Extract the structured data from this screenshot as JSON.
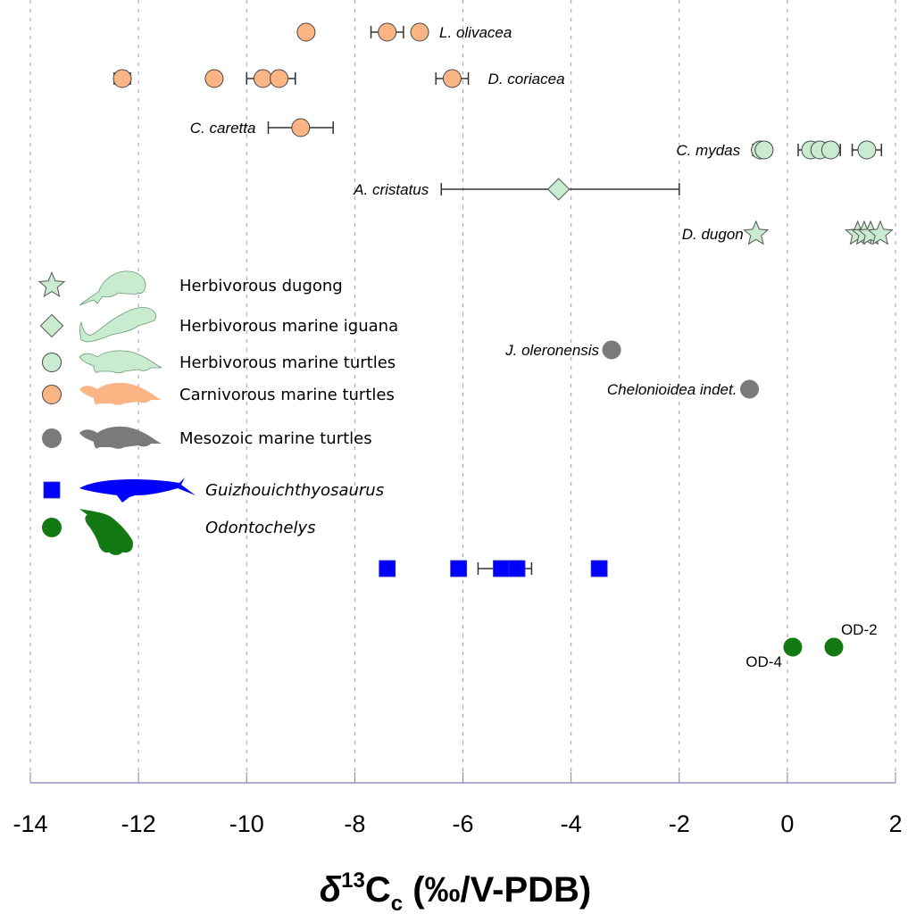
{
  "chart_data": {
    "type": "scatter",
    "title": "",
    "xlabel": "δ13Cc (‰/V-PDB)",
    "xlabel_parts": {
      "delta": "δ",
      "sup": "13",
      "c": "C",
      "sub": "c",
      "rest": " (‰/V-PDB)"
    },
    "ylabel": "",
    "xlim": [
      -14,
      2
    ],
    "xticks": [
      -14,
      -12,
      -10,
      -8,
      -6,
      -4,
      -2,
      0,
      2
    ],
    "xtick_labels": [
      "-14",
      "-12",
      "-10",
      "-8",
      "-6",
      "-4",
      "-2",
      "0",
      "2"
    ],
    "grid": "vertical dashed",
    "legend_placement": "left",
    "colors": {
      "herbivore": "#c9ecd0",
      "carnivore": "#fbb584",
      "mesozoic": "#7a7a7a",
      "ichthyosaur": "#0000ff",
      "odontochelys": "#137a13",
      "outline": "#444444"
    },
    "legend": [
      {
        "marker": "star",
        "group": "herbivore",
        "label": "Herbivorous dugong",
        "italic": false,
        "silhouette": "dugong"
      },
      {
        "marker": "diamond",
        "group": "herbivore",
        "label": "Herbivorous marine iguana",
        "italic": false,
        "silhouette": "iguana"
      },
      {
        "marker": "circle",
        "group": "herbivore",
        "label": "Herbivorous marine turtles",
        "italic": false,
        "silhouette": "turtle"
      },
      {
        "marker": "circle",
        "group": "carnivore",
        "label": "Carnivorous  marine turtles",
        "italic": false,
        "silhouette": "turtle"
      },
      {
        "marker": "circle",
        "group": "mesozoic",
        "label": "Mesozoic marine turtles",
        "italic": false,
        "silhouette": "turtle"
      },
      {
        "marker": "square",
        "group": "ichthyosaur",
        "label": "Guizhouichthyosaurus",
        "italic": true,
        "silhouette": "ichthyosaur"
      },
      {
        "marker": "circle",
        "group": "odontochelys",
        "label": "Odontochelys",
        "italic": true,
        "silhouette": "odontochelys"
      }
    ],
    "series": [
      {
        "name": "L. olivacea",
        "label_side": "right",
        "label_italic": true,
        "marker": "circle",
        "group": "carnivore",
        "row": 0,
        "points": [
          {
            "x": -8.9
          },
          {
            "x": -7.4,
            "err": 0.3
          },
          {
            "x": -6.8
          }
        ]
      },
      {
        "name": "D. coriacea",
        "label_side": "right",
        "label_italic": true,
        "marker": "circle",
        "group": "carnivore",
        "row": 1,
        "points": [
          {
            "x": -12.3,
            "err": 0.15
          },
          {
            "x": -10.6
          },
          {
            "x": -9.7,
            "xmin": -10.0
          },
          {
            "x": -9.4,
            "xmax": -9.1
          },
          {
            "x": -6.2,
            "err": 0.3
          }
        ]
      },
      {
        "name": "C. caretta",
        "label_side": "left",
        "label_italic": true,
        "marker": "circle",
        "group": "carnivore",
        "row": 2,
        "points": [
          {
            "x": -9.0,
            "xmin": -9.6,
            "xmax": -8.4
          }
        ]
      },
      {
        "name": "C. mydas",
        "label_side": "left",
        "label_italic": true,
        "marker": "circle",
        "group": "herbivore",
        "row": 3,
        "points": [
          {
            "x": -0.5,
            "xmin": -0.64
          },
          {
            "x": -0.43
          },
          {
            "x": 0.43,
            "xmin": 0.2
          },
          {
            "x": 0.6
          },
          {
            "x": 0.8,
            "xmax": 0.98
          },
          {
            "x": 1.47,
            "err": 0.27
          }
        ]
      },
      {
        "name": "A. cristatus",
        "label_side": "left",
        "label_italic": true,
        "marker": "diamond",
        "group": "herbivore",
        "row": 4,
        "points": [
          {
            "x": -4.23,
            "xmin": -6.4,
            "xmax": -2.0
          }
        ]
      },
      {
        "name": "D. dugon",
        "label_side": "left",
        "label_italic": true,
        "marker": "star",
        "group": "herbivore",
        "row": 5,
        "points": [
          {
            "x": -0.58
          },
          {
            "x": 1.3
          },
          {
            "x": 1.42
          },
          {
            "x": 1.54
          },
          {
            "x": 1.72
          }
        ]
      },
      {
        "name": "J. oleronensis",
        "label_side": "left",
        "label_italic": true,
        "marker": "circle",
        "group": "mesozoic",
        "row": 6,
        "points": [
          {
            "x": -3.25
          }
        ]
      },
      {
        "name": "Chelonioidea indet.",
        "label_side": "left",
        "label_italic": false,
        "marker": "circle",
        "group": "mesozoic",
        "row": 7,
        "points": [
          {
            "x": -0.7
          }
        ]
      },
      {
        "name": "Guizhouichthyosaurus",
        "label_side": "none",
        "label_italic": true,
        "marker": "square",
        "group": "ichthyosaur",
        "row": 8,
        "points": [
          {
            "x": -7.4
          },
          {
            "x": -6.08
          },
          {
            "x": -5.29,
            "xmin": -5.72
          },
          {
            "x": -5.0,
            "xmax": -4.73
          },
          {
            "x": -3.48
          }
        ]
      },
      {
        "name": "Odontochelys",
        "label_side": "none",
        "label_italic": true,
        "marker": "circle",
        "group": "odontochelys",
        "row": 9,
        "points": [
          {
            "x": 0.1,
            "label": "OD-4",
            "label_pos": "below-left"
          },
          {
            "x": 0.86,
            "label": "OD-2",
            "label_pos": "above-right"
          }
        ]
      }
    ]
  }
}
